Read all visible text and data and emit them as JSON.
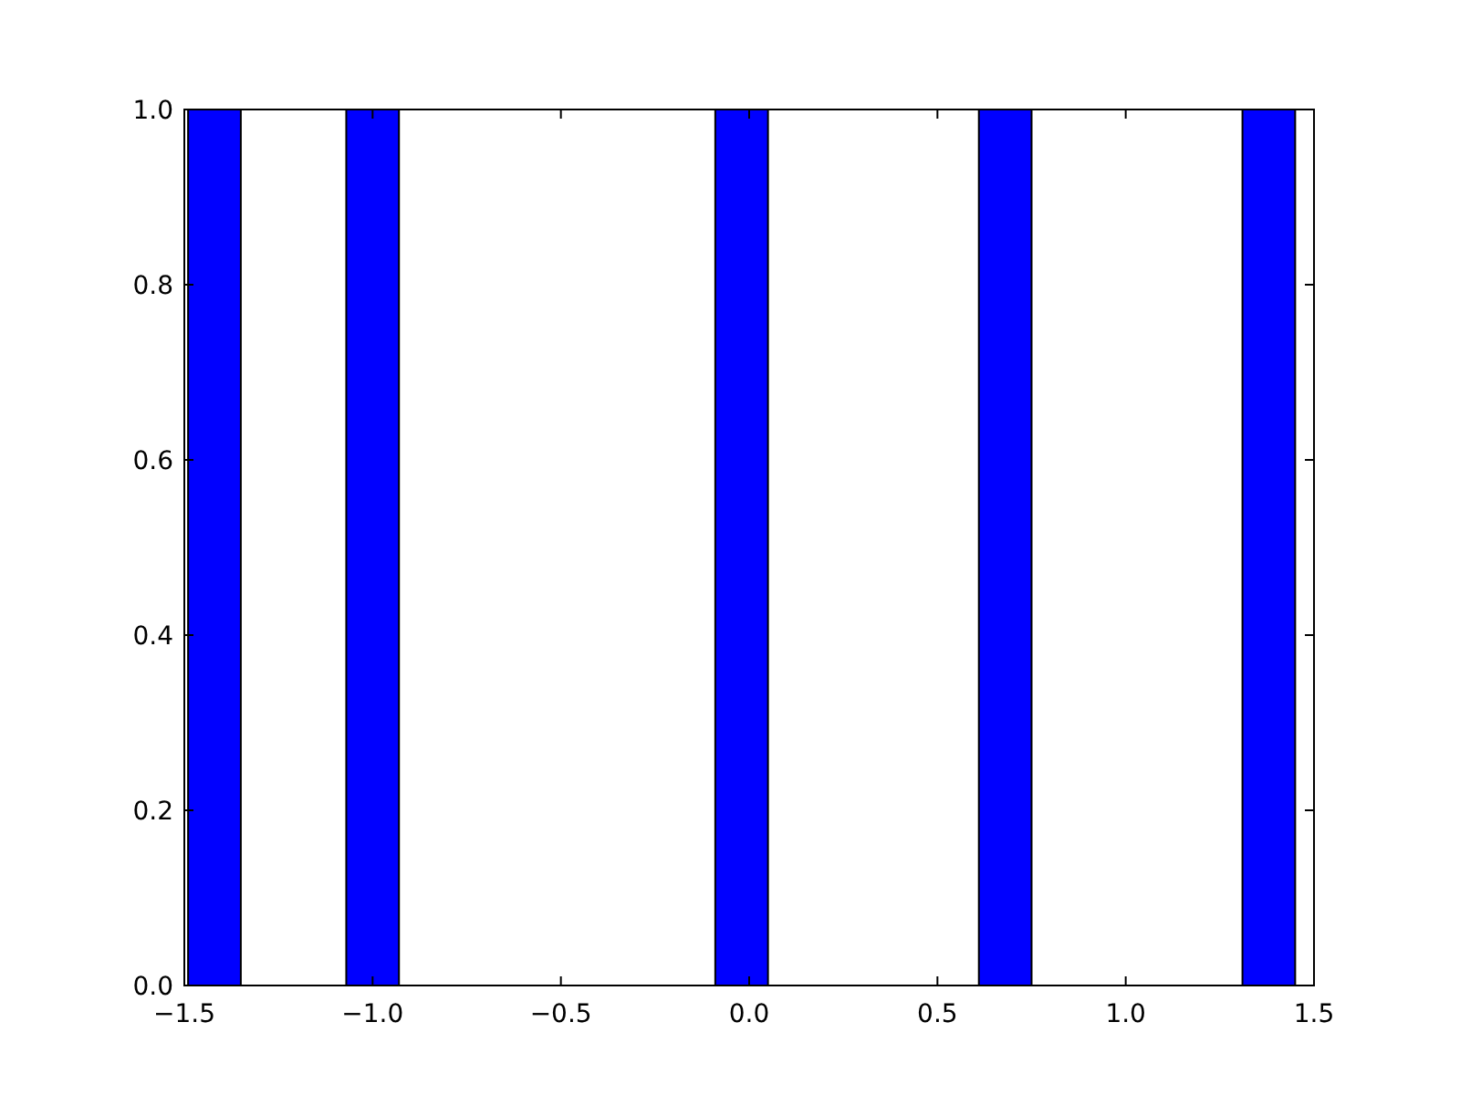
{
  "chart_data": {
    "type": "histogram",
    "bins": [
      -1.49,
      -1.35,
      -1.07,
      -0.93,
      -0.09,
      0.05,
      0.61,
      0.75,
      1.31,
      1.45
    ],
    "values": [
      1,
      0,
      1,
      0,
      1,
      0,
      1,
      0,
      1
    ],
    "color": "#0000ff",
    "xlim": [
      -1.5,
      1.5
    ],
    "xticks": [
      {
        "value": -1.5,
        "label": "−1.5"
      },
      {
        "value": -1,
        "label": "−1.0"
      },
      {
        "value": -0.5,
        "label": "−0.5"
      },
      {
        "value": 0,
        "label": "0.0"
      },
      {
        "value": 0.5,
        "label": "0.5"
      },
      {
        "value": 1,
        "label": "1.0"
      },
      {
        "value": 1.5,
        "label": "1.5"
      }
    ],
    "ylim": [
      0,
      1
    ],
    "yticks": [
      {
        "value": 0,
        "label": "0.0"
      },
      {
        "value": 0.2,
        "label": "0.2"
      },
      {
        "value": 0.4,
        "label": "0.4"
      },
      {
        "value": 0.6,
        "label": "0.6"
      },
      {
        "value": 0.8,
        "label": "0.8"
      },
      {
        "value": 1,
        "label": "1.0"
      }
    ]
  }
}
